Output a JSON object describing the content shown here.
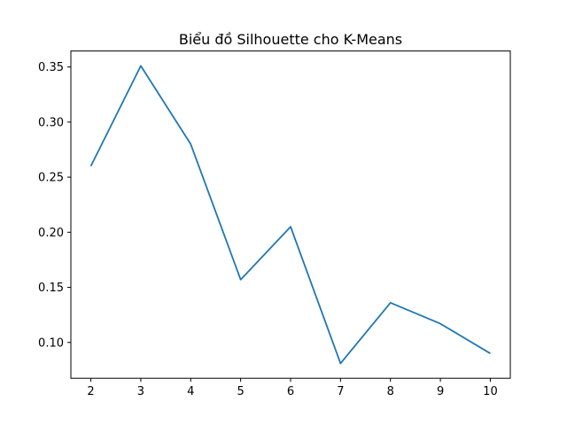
{
  "chart_data": {
    "type": "line",
    "title": "Biểu đồ Silhouette cho K-Means",
    "xlabel": "",
    "ylabel": "",
    "x": [
      2,
      3,
      4,
      5,
      6,
      7,
      8,
      9,
      10
    ],
    "series": [
      {
        "values": [
          0.26,
          0.351,
          0.28,
          0.157,
          0.205,
          0.081,
          0.136,
          0.117,
          0.09
        ],
        "color": "#1f77b4"
      }
    ],
    "xlim": [
      1.6,
      10.4
    ],
    "ylim": [
      0.0675,
      0.3645
    ],
    "xticks": [
      2,
      3,
      4,
      5,
      6,
      7,
      8,
      9,
      10
    ],
    "yticks": [
      0.1,
      0.15,
      0.2,
      0.25,
      0.3,
      0.35
    ],
    "ytick_labels": [
      "0.10",
      "0.15",
      "0.20",
      "0.25",
      "0.30",
      "0.35"
    ],
    "grid": false,
    "legend": "none"
  }
}
